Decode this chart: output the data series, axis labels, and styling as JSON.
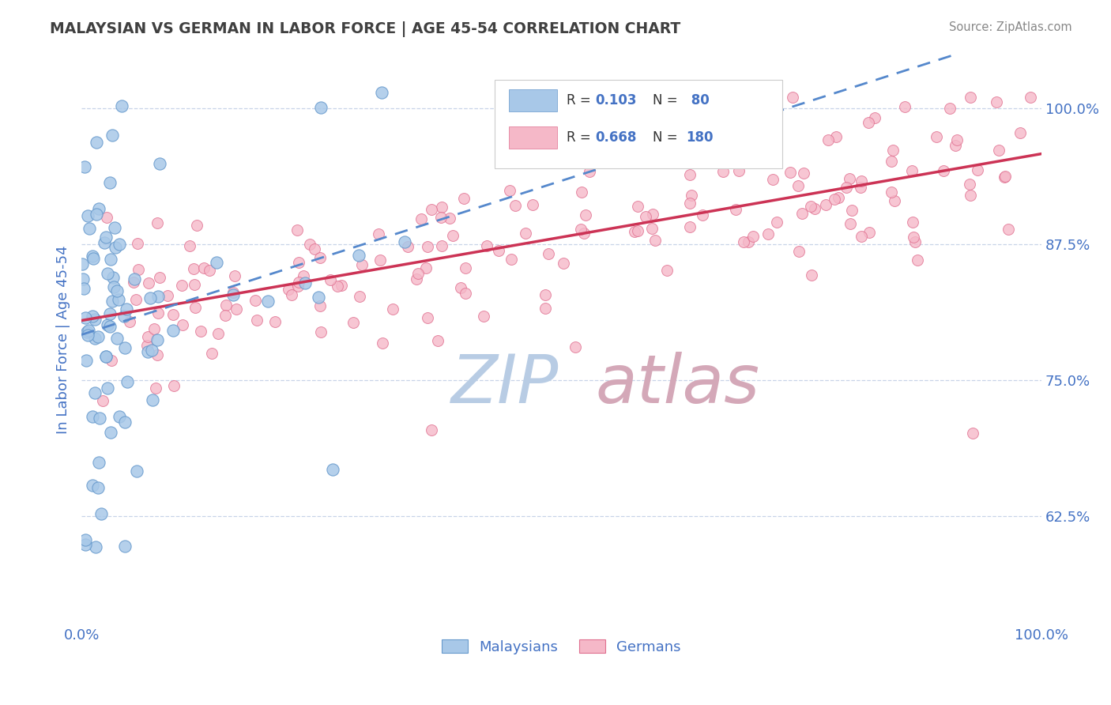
{
  "title": "MALAYSIAN VS GERMAN IN LABOR FORCE | AGE 45-54 CORRELATION CHART",
  "source_text": "Source: ZipAtlas.com",
  "ylabel": "In Labor Force | Age 45-54",
  "x_min": 0.0,
  "x_max": 1.0,
  "y_min": 0.525,
  "y_max": 1.05,
  "y_ticks": [
    0.625,
    0.75,
    0.875,
    1.0
  ],
  "y_tick_labels": [
    "62.5%",
    "75.0%",
    "87.5%",
    "100.0%"
  ],
  "x_tick_labels": [
    "0.0%",
    "100.0%"
  ],
  "legend_r1": "0.103",
  "legend_n1": "80",
  "legend_r2": "0.668",
  "legend_n2": "180",
  "blue_fill": "#a8c8e8",
  "blue_edge": "#6699cc",
  "pink_fill": "#f5b8c8",
  "pink_edge": "#e07090",
  "trend_blue_color": "#5588cc",
  "trend_pink_color": "#cc3355",
  "watermark_zip_color": "#b8cce4",
  "watermark_atlas_color": "#d4a8b8",
  "axis_label_color": "#4472c4",
  "title_color": "#404040",
  "source_color": "#888888",
  "grid_color": "#c8d4e8",
  "legend_box_color": "#e8eef4",
  "blue_N": 80,
  "pink_N": 180,
  "blue_R": 0.103,
  "pink_R": 0.668
}
